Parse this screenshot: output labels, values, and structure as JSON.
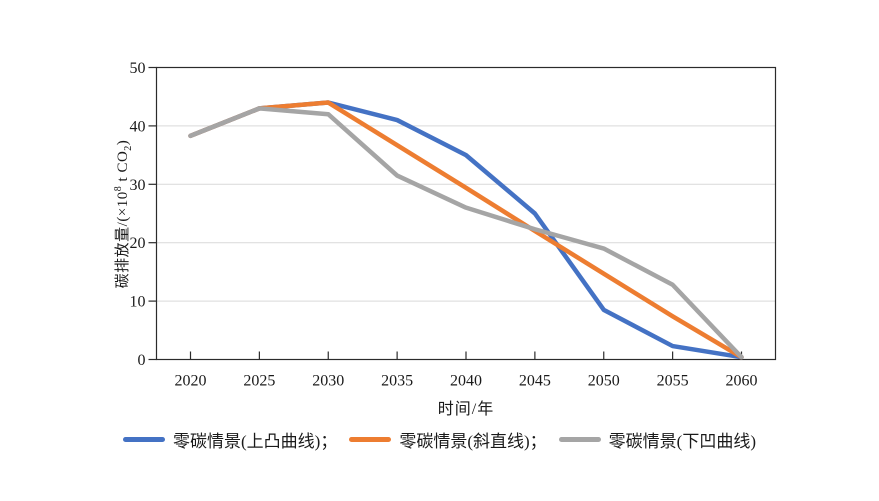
{
  "figure": {
    "background": "#ffffff",
    "frame_color": "#2b2b2b",
    "grid_color": "#d9d9d9",
    "tick_color": "#2b2b2b",
    "text_color": "#1a1a1a"
  },
  "chart_data": {
    "type": "line",
    "title": "",
    "x": [
      2020,
      2025,
      2030,
      2035,
      2040,
      2045,
      2050,
      2055,
      2060
    ],
    "series": [
      {
        "name": "零碳情景(上凸曲线)",
        "color": "#4472C4",
        "values": [
          38.3,
          43,
          44,
          41,
          35,
          25,
          8.5,
          2.3,
          0.4
        ]
      },
      {
        "name": "零碳情景(斜直线)",
        "color": "#ED7D31",
        "values": [
          38.3,
          43,
          44,
          36.7,
          29.4,
          22,
          14.7,
          7.4,
          0.4
        ]
      },
      {
        "name": "零碳情景(下凹曲线)",
        "color": "#A5A5A5",
        "values": [
          38.3,
          43,
          42,
          31.5,
          26,
          22.3,
          19,
          12.8,
          0.4
        ]
      }
    ],
    "xlabel": "时间/年",
    "ylabel": "碳排放量/(×10⁸ t CO₂)",
    "ylabel_segments": {
      "prefix": "碳排放量/(×10",
      "sup": "8",
      "mid": " t CO",
      "sub": "2",
      "suffix": ")"
    },
    "xticks": [
      2020,
      2025,
      2030,
      2035,
      2040,
      2045,
      2050,
      2055,
      2060
    ],
    "yticks": [
      0,
      10,
      20,
      30,
      40,
      50
    ],
    "xlim": [
      2017.5,
      2062.5
    ],
    "ylim": [
      0,
      50
    ],
    "grid": "horizontal-light",
    "legend_position": "bottom",
    "line_width": 4.5
  },
  "legend": {
    "items": [
      {
        "label": "零碳情景(上凸曲线)；",
        "color": "#4472C4"
      },
      {
        "label": "零碳情景(斜直线)；",
        "color": "#ED7D31"
      },
      {
        "label": "零碳情景(下凹曲线)",
        "color": "#A5A5A5"
      }
    ]
  }
}
